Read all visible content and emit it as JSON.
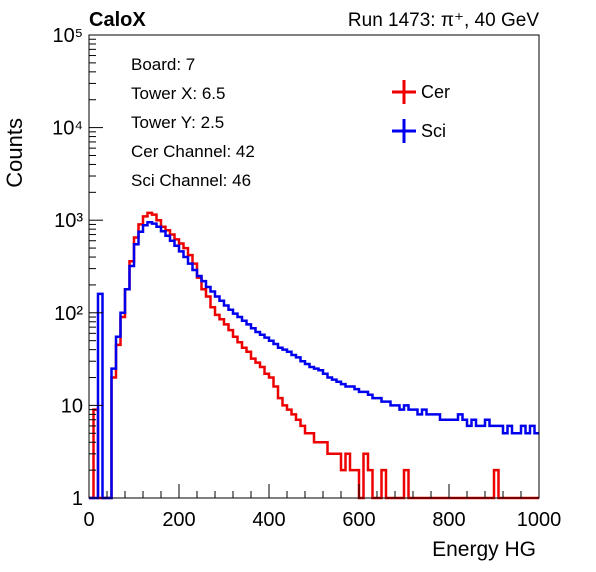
{
  "header": {
    "brand": "CaloX",
    "run_info": "Run 1473:   π⁺, 40 GeV"
  },
  "info_box": {
    "lines": [
      "Board: 7",
      "Tower X: 6.5",
      "Tower Y: 2.5",
      "Cer Channel: 42",
      "Sci Channel: 46"
    ]
  },
  "chart_data": {
    "type": "line",
    "xlabel": "Energy HG",
    "ylabel": "Counts",
    "xlim": [
      0,
      1000
    ],
    "ylim": [
      1,
      100000
    ],
    "y_scale": "log",
    "x_ticks": [
      0,
      200,
      400,
      600,
      800,
      1000
    ],
    "x_tick_labels": [
      "0",
      "200",
      "400",
      "600",
      "800",
      "1000"
    ],
    "y_ticks": [
      1,
      10,
      100,
      1000,
      10000,
      100000
    ],
    "y_tick_labels": [
      "1",
      "10",
      "10²",
      "10³",
      "10⁴",
      "10⁵"
    ],
    "legend_position": "top-right",
    "grid": false,
    "series": [
      {
        "name": "Cer",
        "color": "#ee0000",
        "x": [
          0,
          10,
          20,
          30,
          40,
          50,
          60,
          70,
          80,
          90,
          100,
          110,
          120,
          130,
          140,
          150,
          160,
          170,
          180,
          190,
          200,
          210,
          220,
          230,
          240,
          250,
          260,
          270,
          280,
          290,
          300,
          310,
          320,
          330,
          340,
          350,
          360,
          370,
          380,
          390,
          400,
          410,
          420,
          430,
          440,
          450,
          460,
          470,
          480,
          490,
          500,
          510,
          520,
          530,
          540,
          550,
          560,
          570,
          580,
          590,
          600,
          610,
          620,
          630,
          640,
          650,
          660,
          670,
          680,
          690,
          700,
          710,
          720,
          730,
          740,
          750,
          760,
          770,
          780,
          790,
          800,
          810,
          820,
          830,
          840,
          850,
          860,
          870,
          880,
          890,
          900,
          910,
          920,
          930,
          940,
          950,
          960,
          970,
          980,
          990
        ],
        "values": [
          1,
          9,
          1,
          1,
          1,
          20,
          45,
          90,
          180,
          360,
          650,
          900,
          1100,
          1200,
          1150,
          1000,
          850,
          780,
          700,
          620,
          560,
          500,
          420,
          340,
          240,
          180,
          150,
          115,
          95,
          85,
          75,
          65,
          55,
          48,
          42,
          38,
          32,
          29,
          26,
          22,
          20,
          16,
          12,
          10,
          9,
          8,
          7,
          6,
          5,
          5,
          4,
          4,
          4,
          3,
          3,
          3,
          2,
          3,
          2,
          2,
          1,
          3,
          2,
          1,
          1,
          2,
          1,
          1,
          1,
          1,
          2,
          1,
          1,
          1,
          1,
          1,
          1,
          1,
          1,
          1,
          1,
          1,
          1,
          1,
          1,
          1,
          1,
          1,
          1,
          1,
          2,
          1,
          1,
          1,
          1,
          1,
          1,
          1,
          1,
          1
        ]
      },
      {
        "name": "Sci",
        "color": "#0000ee",
        "x": [
          0,
          10,
          20,
          30,
          40,
          50,
          60,
          70,
          80,
          90,
          100,
          110,
          120,
          130,
          140,
          150,
          160,
          170,
          180,
          190,
          200,
          210,
          220,
          230,
          240,
          250,
          260,
          270,
          280,
          290,
          300,
          310,
          320,
          330,
          340,
          350,
          360,
          370,
          380,
          390,
          400,
          410,
          420,
          430,
          440,
          450,
          460,
          470,
          480,
          490,
          500,
          510,
          520,
          530,
          540,
          550,
          560,
          570,
          580,
          590,
          600,
          610,
          620,
          630,
          640,
          650,
          660,
          670,
          680,
          690,
          700,
          710,
          720,
          730,
          740,
          750,
          760,
          770,
          780,
          790,
          800,
          810,
          820,
          830,
          840,
          850,
          860,
          870,
          880,
          890,
          900,
          910,
          920,
          930,
          940,
          950,
          960,
          970,
          980,
          990
        ],
        "values": [
          1,
          1,
          160,
          1,
          1,
          25,
          55,
          100,
          180,
          320,
          550,
          750,
          880,
          950,
          920,
          850,
          760,
          680,
          600,
          530,
          460,
          400,
          340,
          290,
          250,
          220,
          190,
          170,
          150,
          135,
          120,
          108,
          98,
          90,
          82,
          75,
          68,
          62,
          58,
          54,
          50,
          46,
          42,
          40,
          38,
          35,
          33,
          30,
          28,
          26,
          25,
          24,
          22,
          20,
          19,
          18,
          17,
          16,
          16,
          15,
          14,
          14,
          13,
          12,
          12,
          11,
          11,
          10,
          10,
          9,
          10,
          9,
          9,
          8,
          9,
          8,
          8,
          8,
          7,
          7,
          7,
          7,
          8,
          7,
          6,
          7,
          6,
          6,
          7,
          6,
          6,
          6,
          5,
          6,
          5,
          5,
          6,
          5,
          6,
          5
        ]
      }
    ]
  }
}
